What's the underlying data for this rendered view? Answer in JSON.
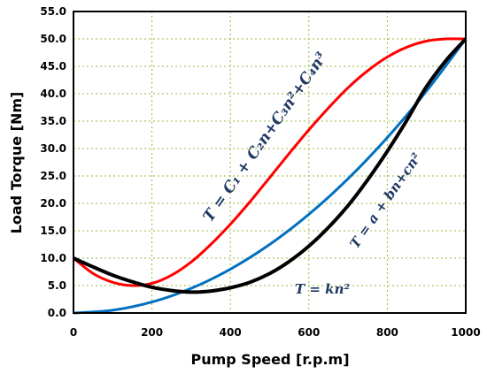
{
  "chart_data": {
    "type": "line",
    "title": "",
    "xlabel": "Pump Speed [r.p.m]",
    "ylabel": "Load Torque [Nm]",
    "xlim": [
      0,
      1000
    ],
    "ylim": [
      0,
      55
    ],
    "xticks": [
      0,
      200,
      400,
      600,
      800,
      1000
    ],
    "yticks": [
      0,
      5,
      10,
      15,
      20,
      25,
      30,
      35,
      40,
      45,
      50,
      55
    ],
    "xtick_labels": [
      "0",
      "200",
      "400",
      "600",
      "800",
      "1000"
    ],
    "ytick_labels": [
      "0.0",
      "5.0",
      "10.0",
      "15.0",
      "20.0",
      "25.0",
      "30.0",
      "35.0",
      "40.0",
      "45.0",
      "50.0",
      "55.0"
    ],
    "grid": true,
    "legend": "none",
    "series": [
      {
        "color": "#ff0000",
        "x": [
          0,
          50,
          100,
          150,
          200,
          250,
          300,
          350,
          400,
          450,
          500,
          550,
          600,
          650,
          700,
          750,
          800,
          850,
          900,
          950,
          1000
        ],
        "y": [
          10.0,
          7.2,
          5.6,
          5.0,
          5.4,
          6.9,
          9.3,
          12.5,
          16.2,
          20.3,
          24.7,
          29.1,
          33.4,
          37.4,
          41.1,
          44.2,
          46.7,
          48.5,
          49.6,
          50.0,
          50.0
        ]
      },
      {
        "color": "#0070c0",
        "x": [
          0,
          100,
          200,
          300,
          400,
          500,
          600,
          700,
          800,
          900,
          1000
        ],
        "y": [
          0.0,
          0.5,
          2.0,
          4.5,
          8.0,
          12.5,
          18.0,
          24.5,
          32.0,
          40.5,
          50.0
        ]
      },
      {
        "color": "#000000",
        "x": [
          0,
          50,
          100,
          150,
          200,
          250,
          300,
          350,
          400,
          450,
          500,
          550,
          600,
          650,
          700,
          750,
          800,
          850,
          900,
          950,
          1000
        ],
        "y": [
          10.0,
          8.4,
          6.9,
          5.7,
          4.7,
          4.1,
          3.8,
          4.0,
          4.6,
          5.6,
          7.2,
          9.4,
          12.2,
          15.6,
          19.6,
          24.3,
          29.5,
          35.2,
          41.3,
          46.1,
          50.0
        ]
      }
    ],
    "annotations": [
      {
        "text": "T = C₁ + C₂n+C₃n²+C₄n³",
        "color": "#1f3864"
      },
      {
        "text": "T = a + bn+cn²",
        "color": "#1f3864"
      },
      {
        "text": "T = kn²",
        "color": "#1f3864"
      }
    ]
  }
}
